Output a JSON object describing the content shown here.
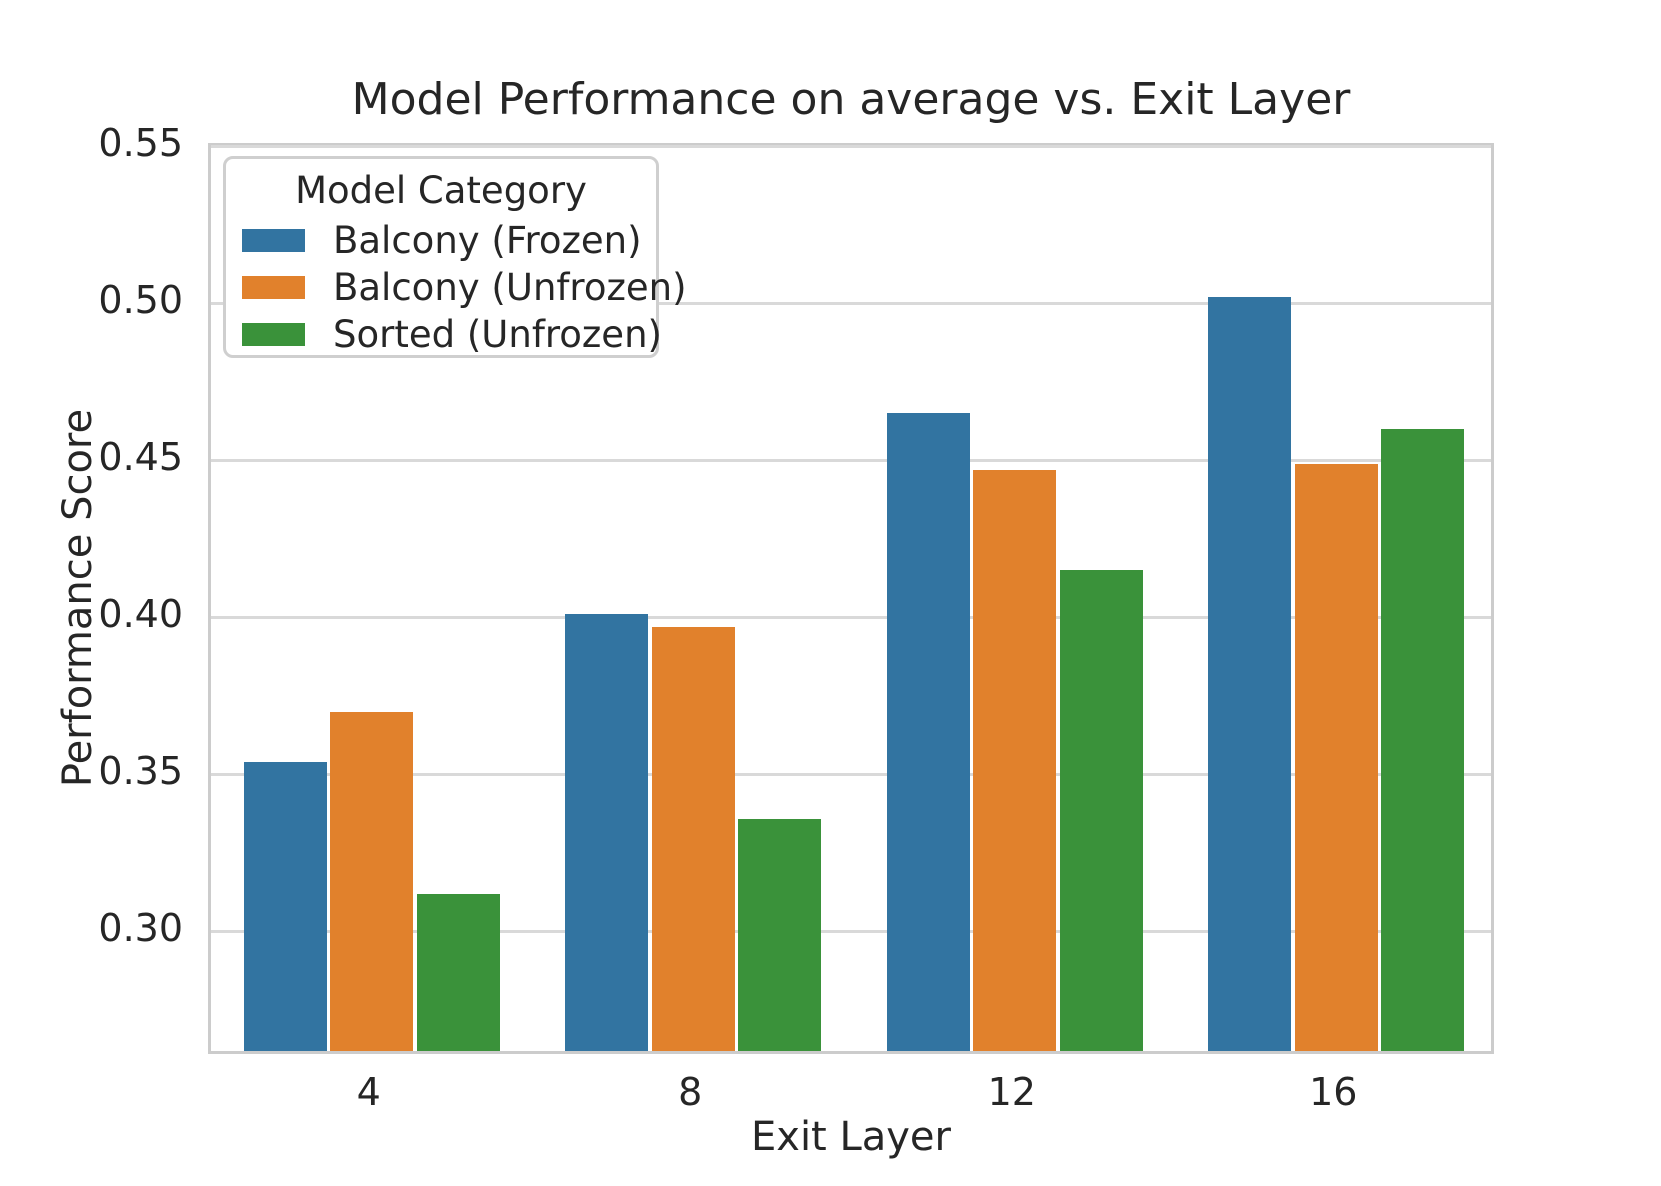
{
  "chart_data": {
    "type": "bar",
    "title": "Model Performance on average vs. Exit Layer",
    "xlabel": "Exit Layer",
    "ylabel": "Performance Score",
    "categories": [
      "4",
      "8",
      "12",
      "16"
    ],
    "series": [
      {
        "name": "Balcony (Frozen)",
        "color": "#3274a1",
        "values": [
          0.352,
          0.399,
          0.463,
          0.5
        ]
      },
      {
        "name": "Balcony (Unfrozen)",
        "color": "#e1812c",
        "values": [
          0.368,
          0.395,
          0.445,
          0.447
        ]
      },
      {
        "name": "Sorted (Unfrozen)",
        "color": "#3a923a",
        "values": [
          0.31,
          0.334,
          0.413,
          0.458
        ]
      }
    ],
    "ylim": [
      0.26,
      0.55
    ],
    "ytick_values": [
      0.3,
      0.35,
      0.4,
      0.45,
      0.5,
      0.55
    ],
    "ytick_labels": [
      "0.30",
      "0.35",
      "0.40",
      "0.45",
      "0.50",
      "0.55"
    ],
    "legend": {
      "title": "Model Category",
      "position": "upper left"
    },
    "grid": true,
    "colors": {
      "background": "#ffffff",
      "grid": "#d9d9d9",
      "spine": "#cccccc",
      "text": "#262626"
    }
  }
}
